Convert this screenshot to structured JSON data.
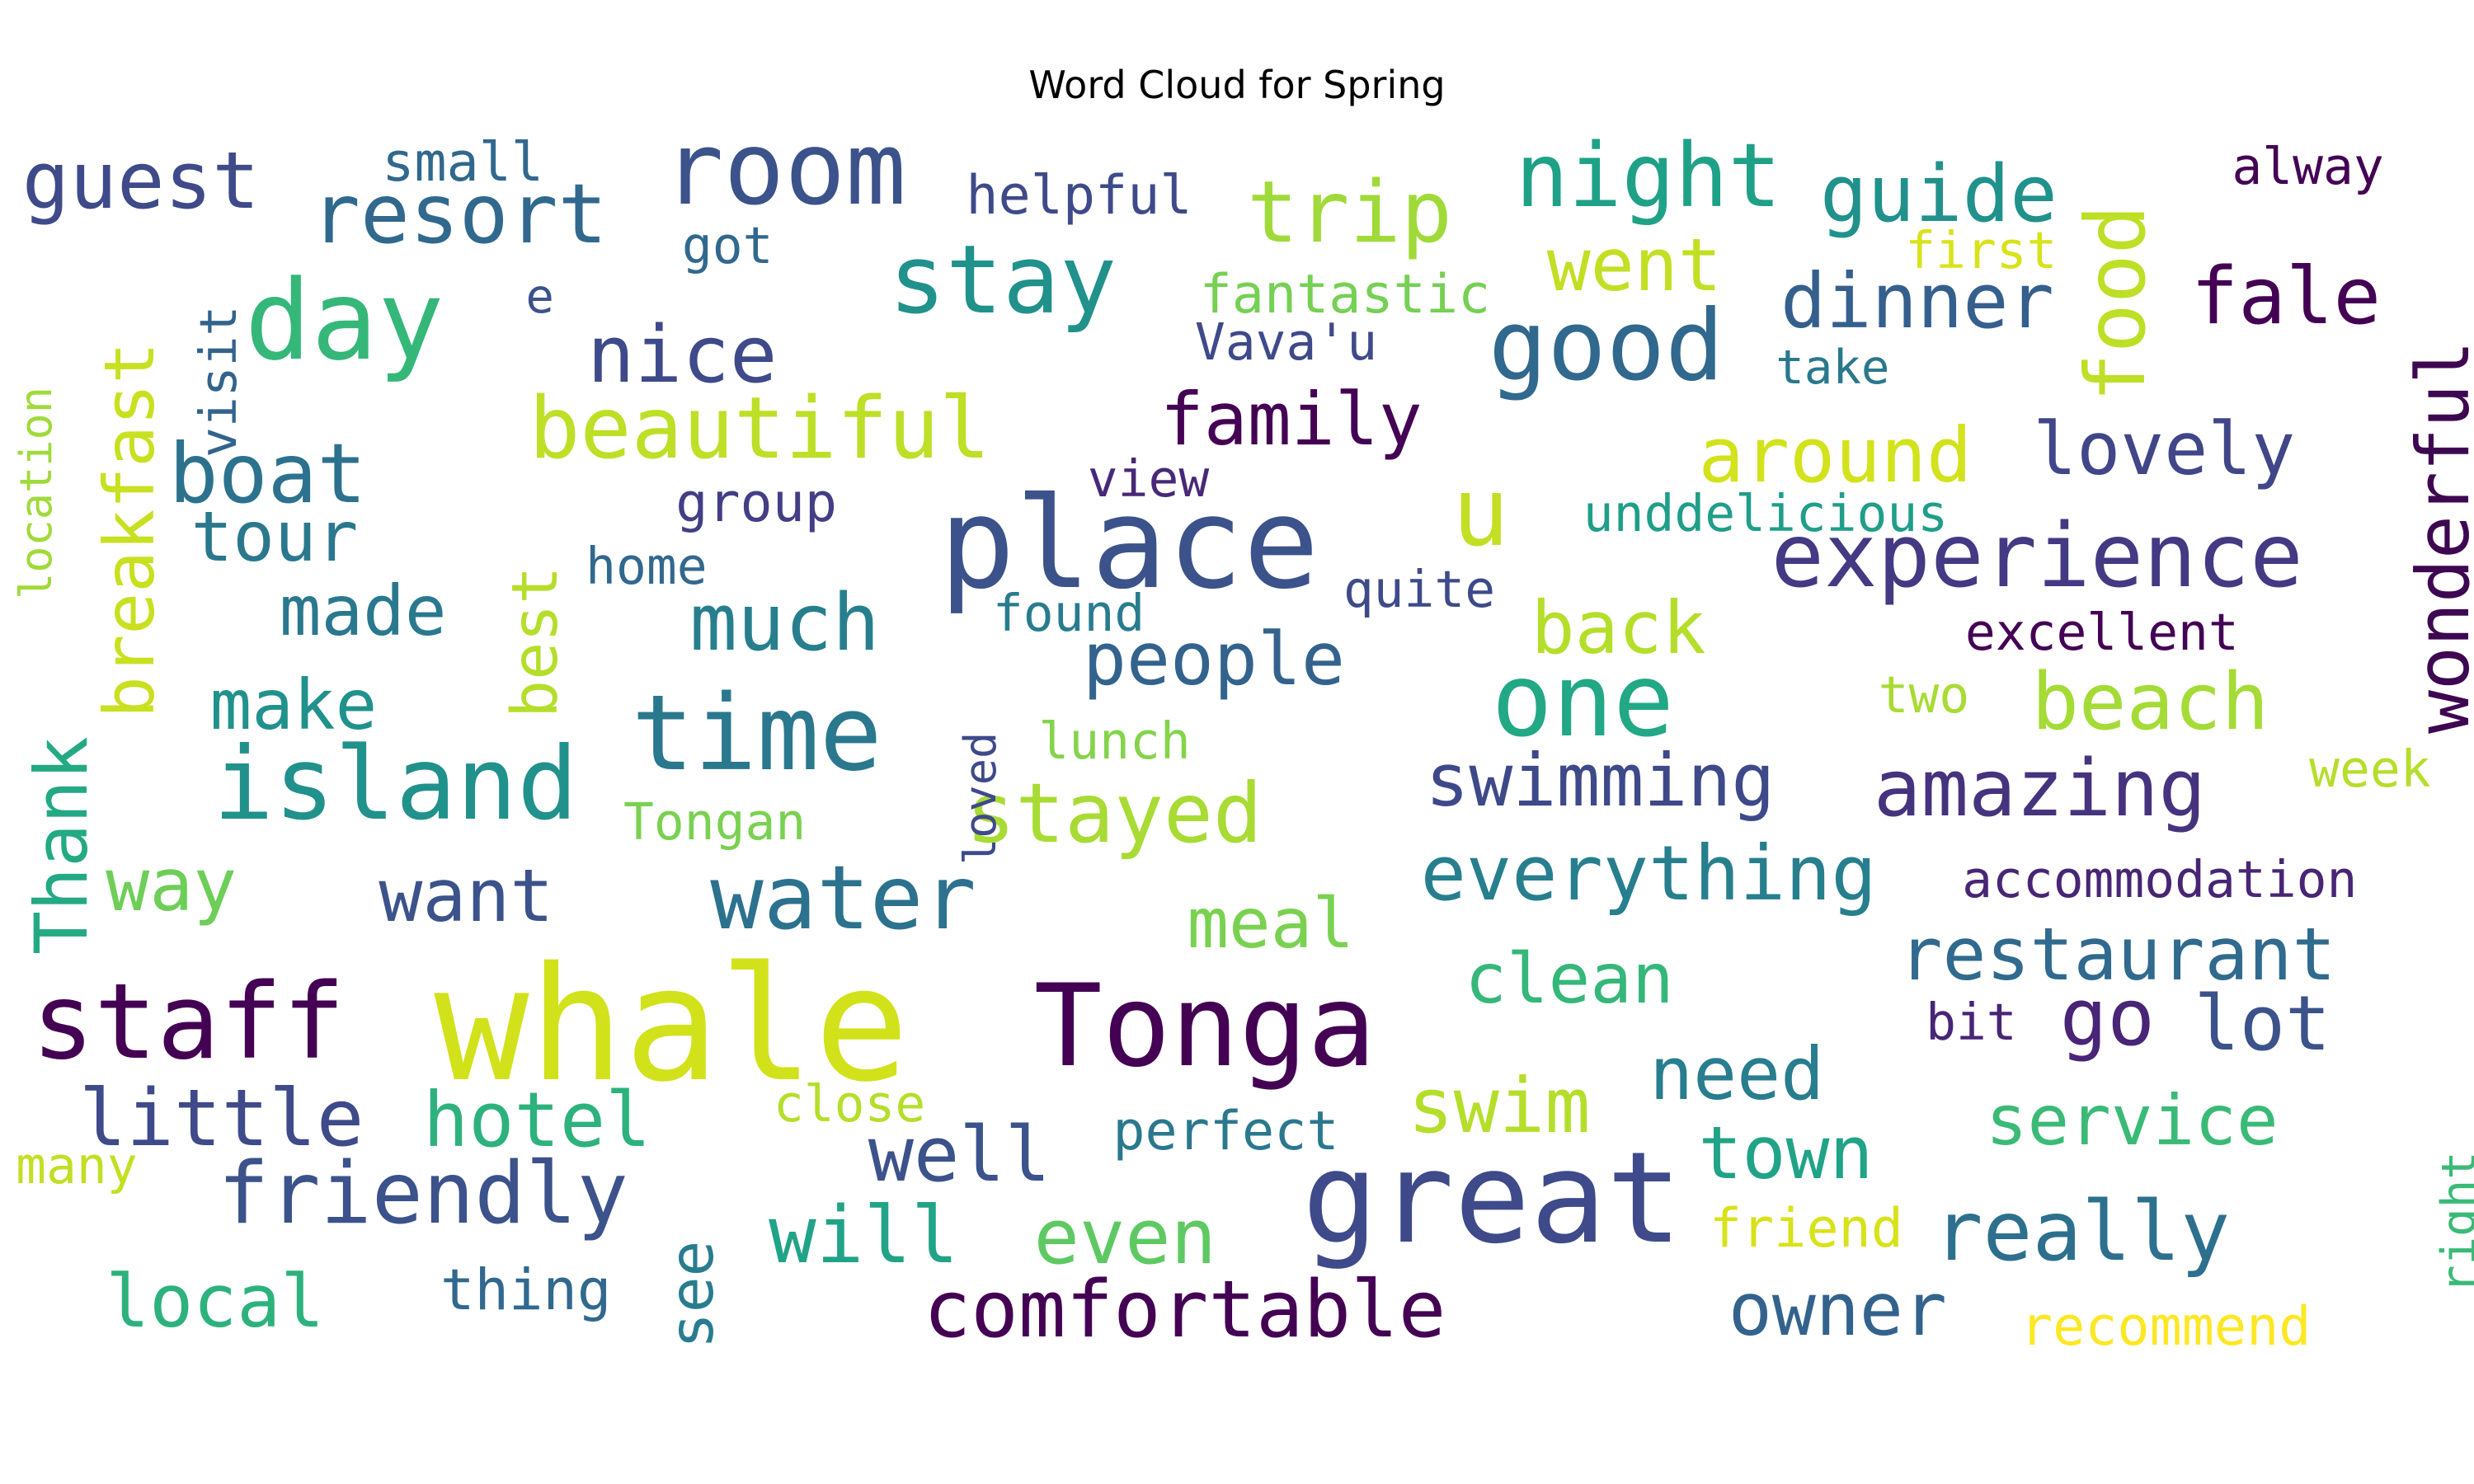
{
  "title": "Word Cloud for Spring",
  "words": [
    {
      "text": "whale",
      "color": "#d1e21b",
      "rotated": false
    },
    {
      "text": "great",
      "color": "#3e4a89",
      "rotated": false
    },
    {
      "text": "place",
      "color": "#3b528b",
      "rotated": false
    },
    {
      "text": "Tonga",
      "color": "#440154",
      "rotated": false
    },
    {
      "text": "room",
      "color": "#3b528b",
      "rotated": false
    },
    {
      "text": "day",
      "color": "#35b779",
      "rotated": false
    },
    {
      "text": "time",
      "color": "#2a788e",
      "rotated": false
    },
    {
      "text": "island",
      "color": "#21918c",
      "rotated": false
    },
    {
      "text": "staff",
      "color": "#440154",
      "rotated": false
    },
    {
      "text": "good",
      "color": "#31688e",
      "rotated": false
    },
    {
      "text": "one",
      "color": "#22a884",
      "rotated": false
    },
    {
      "text": "stay",
      "color": "#21918c",
      "rotated": false
    },
    {
      "text": "experience",
      "color": "#443983",
      "rotated": false
    },
    {
      "text": "water",
      "color": "#2c728e",
      "rotated": false
    },
    {
      "text": "night",
      "color": "#1fa187",
      "rotated": false
    },
    {
      "text": "food",
      "color": "#bddf26",
      "rotated": true
    },
    {
      "text": "u",
      "color": "#c2df23",
      "rotated": false
    },
    {
      "text": "friendly",
      "color": "#3b528b",
      "rotated": false
    },
    {
      "text": "trip",
      "color": "#a0da39",
      "rotated": false
    },
    {
      "text": "resort",
      "color": "#31688e",
      "rotated": false
    },
    {
      "text": "guest",
      "color": "#3e4a89",
      "rotated": false
    },
    {
      "text": "boat",
      "color": "#2c728e",
      "rotated": false
    },
    {
      "text": "stayed",
      "color": "#a8db34",
      "rotated": false
    },
    {
      "text": "beautiful",
      "color": "#bddf26",
      "rotated": false
    },
    {
      "text": "amazing",
      "color": "#46337e",
      "rotated": false
    },
    {
      "text": "comfortable",
      "color": "#440154",
      "rotated": false
    },
    {
      "text": "wonderful",
      "color": "#3e0751",
      "rotated": true
    },
    {
      "text": "swimming",
      "color": "#3e4989",
      "rotated": false
    },
    {
      "text": "everything",
      "color": "#277f8e",
      "rotated": false
    },
    {
      "text": "restaurant",
      "color": "#306a8e",
      "rotated": false
    },
    {
      "text": "breakfast",
      "color": "#c8e020",
      "rotated": true
    },
    {
      "text": "Thank",
      "color": "#23a983",
      "rotated": true
    },
    {
      "text": "little",
      "color": "#3e4a89",
      "rotated": false
    },
    {
      "text": "nice",
      "color": "#3e4a89",
      "rotated": false
    },
    {
      "text": "dinner",
      "color": "#355f8d",
      "rotated": false
    },
    {
      "text": "fale",
      "color": "#440154",
      "rotated": false
    },
    {
      "text": "lovely",
      "color": "#404688",
      "rotated": false
    },
    {
      "text": "family",
      "color": "#440154",
      "rotated": false
    },
    {
      "text": "around",
      "color": "#d2e21b",
      "rotated": false
    },
    {
      "text": "guide",
      "color": "#21918c",
      "rotated": false
    },
    {
      "text": "beach",
      "color": "#a5db36",
      "rotated": false
    },
    {
      "text": "really",
      "color": "#2d708e",
      "rotated": false
    },
    {
      "text": "people",
      "color": "#33638d",
      "rotated": false
    },
    {
      "text": "much",
      "color": "#277f8e",
      "rotated": false
    },
    {
      "text": "made",
      "color": "#2a788e",
      "rotated": false
    },
    {
      "text": "tour",
      "color": "#2a788e",
      "rotated": false
    },
    {
      "text": "hotel",
      "color": "#2db27d",
      "rotated": false
    },
    {
      "text": "swim",
      "color": "#b5de2b",
      "rotated": false
    },
    {
      "text": "will",
      "color": "#20a386",
      "rotated": false
    },
    {
      "text": "even",
      "color": "#5ec962",
      "rotated": false
    },
    {
      "text": "local",
      "color": "#2db27d",
      "rotated": false
    },
    {
      "text": "see",
      "color": "#287c8e",
      "rotated": true
    },
    {
      "text": "best",
      "color": "#b5de2b",
      "rotated": true
    },
    {
      "text": "back",
      "color": "#b5de2b",
      "rotated": false
    },
    {
      "text": "went",
      "color": "#c2df23",
      "rotated": false
    },
    {
      "text": "clean",
      "color": "#35b779",
      "rotated": false
    },
    {
      "text": "meal",
      "color": "#7ad151",
      "rotated": false
    },
    {
      "text": "need",
      "color": "#287d8e",
      "rotated": false
    },
    {
      "text": "town",
      "color": "#20a386",
      "rotated": false
    },
    {
      "text": "service",
      "color": "#3aba76",
      "rotated": false
    },
    {
      "text": "owner",
      "color": "#33638d",
      "rotated": false
    },
    {
      "text": "well",
      "color": "#3b528b",
      "rotated": false
    },
    {
      "text": "go",
      "color": "#482576",
      "rotated": false
    },
    {
      "text": "lot",
      "color": "#3b528b",
      "rotated": false
    },
    {
      "text": "want",
      "color": "#3b528b",
      "rotated": false
    },
    {
      "text": "make",
      "color": "#21918c",
      "rotated": false
    },
    {
      "text": "way",
      "color": "#6ece58",
      "rotated": false
    },
    {
      "text": "helpful",
      "color": "#3e4a89",
      "rotated": false
    },
    {
      "text": "fantastic",
      "color": "#75d054",
      "rotated": false
    },
    {
      "text": "Vava'u",
      "color": "#3e4a89",
      "rotated": false
    },
    {
      "text": "small",
      "color": "#31688e",
      "rotated": false
    },
    {
      "text": "got",
      "color": "#31688e",
      "rotated": false
    },
    {
      "text": "e",
      "color": "#3b528b",
      "rotated": false
    },
    {
      "text": "visit",
      "color": "#33638d",
      "rotated": true
    },
    {
      "text": "location",
      "color": "#9fda3a",
      "rotated": true
    },
    {
      "text": "view",
      "color": "#482878",
      "rotated": false
    },
    {
      "text": "group",
      "color": "#433e85",
      "rotated": false
    },
    {
      "text": "home",
      "color": "#31688e",
      "rotated": false
    },
    {
      "text": "found",
      "color": "#287c8e",
      "rotated": false
    },
    {
      "text": "quite",
      "color": "#3e4a89",
      "rotated": false
    },
    {
      "text": "unddelicious",
      "color": "#1f9e89",
      "rotated": false
    },
    {
      "text": "excellent",
      "color": "#440154",
      "rotated": false
    },
    {
      "text": "two",
      "color": "#a8db34",
      "rotated": false
    },
    {
      "text": "lunch",
      "color": "#84d44b",
      "rotated": false
    },
    {
      "text": "Tongan",
      "color": "#7ad151",
      "rotated": false
    },
    {
      "text": "loved",
      "color": "#3e4a89",
      "rotated": true
    },
    {
      "text": "week",
      "color": "#b5de2b",
      "rotated": false
    },
    {
      "text": "accommodation",
      "color": "#482575",
      "rotated": false
    },
    {
      "text": "bit",
      "color": "#482576",
      "rotated": false
    },
    {
      "text": "close",
      "color": "#b5de2b",
      "rotated": false
    },
    {
      "text": "perfect",
      "color": "#2a788e",
      "rotated": false
    },
    {
      "text": "many",
      "color": "#c2df23",
      "rotated": false
    },
    {
      "text": "thing",
      "color": "#31688e",
      "rotated": false
    },
    {
      "text": "friend",
      "color": "#d8e219",
      "rotated": false
    },
    {
      "text": "recommend",
      "color": "#fde725",
      "rotated": false
    },
    {
      "text": "right",
      "color": "#3aba76",
      "rotated": true
    },
    {
      "text": "first",
      "color": "#d8e219",
      "rotated": false
    },
    {
      "text": "take",
      "color": "#2a788e",
      "rotated": false
    },
    {
      "text": "alway",
      "color": "#440154",
      "rotated": false
    }
  ]
}
